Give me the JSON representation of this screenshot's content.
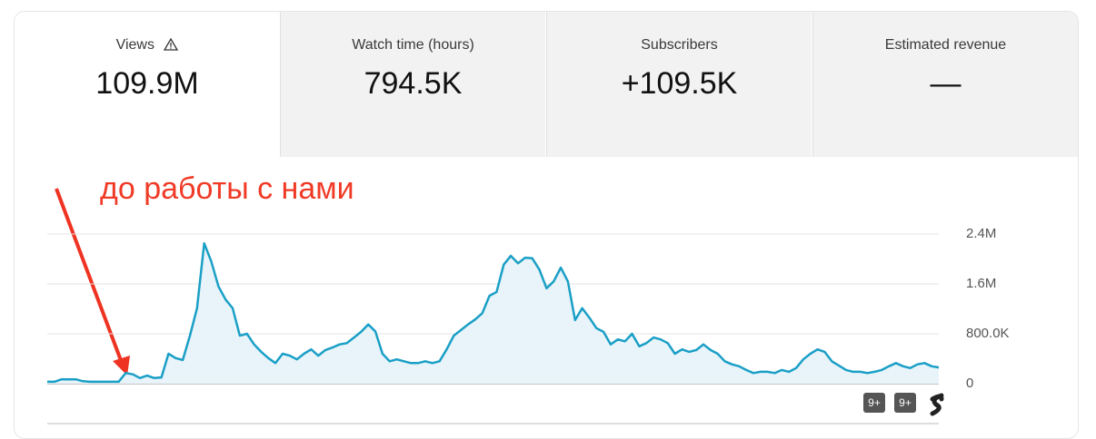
{
  "metrics": [
    {
      "label": "Views",
      "value": "109.9M"
    },
    {
      "label": "Watch time (hours)",
      "value": "794.5K"
    },
    {
      "label": "Subscribers",
      "value": "+109.5K"
    },
    {
      "label": "Estimated revenue",
      "value": "—"
    }
  ],
  "annotation": "до работы с нами",
  "markers": [
    "9+",
    "9+"
  ],
  "chart_data": {
    "type": "line",
    "color": "#1a9fc6",
    "area_color": "#e8f4fa",
    "grid": true,
    "ylim": [
      0,
      2400000
    ],
    "yticks": [
      0,
      {
        "value": 800000,
        "label": "800.0K"
      },
      {
        "value": 1600000,
        "label": "1.6M"
      },
      {
        "value": 2400000,
        "label": "2.4M"
      }
    ],
    "values": [
      30000,
      30000,
      70000,
      70000,
      70000,
      40000,
      30000,
      30000,
      30000,
      30000,
      30000,
      170000,
      150000,
      90000,
      130000,
      90000,
      100000,
      480000,
      410000,
      380000,
      770000,
      1210000,
      2250000,
      1960000,
      1560000,
      1350000,
      1210000,
      770000,
      800000,
      630000,
      510000,
      410000,
      330000,
      480000,
      450000,
      390000,
      480000,
      550000,
      450000,
      540000,
      580000,
      630000,
      650000,
      740000,
      830000,
      950000,
      840000,
      480000,
      360000,
      390000,
      360000,
      330000,
      330000,
      360000,
      330000,
      360000,
      550000,
      770000,
      860000,
      950000,
      1030000,
      1130000,
      1410000,
      1470000,
      1910000,
      2050000,
      1930000,
      2020000,
      2010000,
      1830000,
      1530000,
      1640000,
      1860000,
      1640000,
      1020000,
      1210000,
      1060000,
      890000,
      830000,
      630000,
      710000,
      680000,
      800000,
      600000,
      650000,
      740000,
      710000,
      650000,
      480000,
      550000,
      510000,
      540000,
      630000,
      540000,
      480000,
      360000,
      310000,
      280000,
      220000,
      170000,
      190000,
      190000,
      170000,
      220000,
      190000,
      250000,
      390000,
      480000,
      550000,
      510000,
      360000,
      290000,
      220000,
      190000,
      190000,
      170000,
      190000,
      220000,
      280000,
      330000,
      280000,
      250000,
      310000,
      330000,
      280000,
      260000
    ]
  }
}
